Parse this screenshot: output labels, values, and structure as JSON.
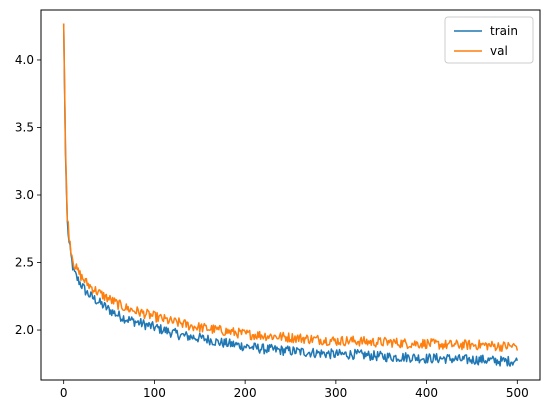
{
  "chart_data": {
    "type": "line",
    "title": "",
    "xlabel": "",
    "ylabel": "",
    "xlim": [
      -25,
      525
    ],
    "ylim": [
      1.63,
      4.37
    ],
    "xticks": [
      0,
      100,
      200,
      300,
      400,
      500
    ],
    "yticks": [
      2.0,
      2.5,
      3.0,
      3.5,
      4.0
    ],
    "xtick_labels": [
      "0",
      "100",
      "200",
      "300",
      "400",
      "500"
    ],
    "ytick_labels": [
      "2.0",
      "2.5",
      "3.0",
      "3.5",
      "4.0"
    ],
    "grid": false,
    "legend": {
      "position": "upper-right"
    },
    "series": [
      {
        "name": "train",
        "color": "#1f77b4",
        "x": [
          0,
          2,
          4,
          6,
          8,
          10,
          12,
          15,
          20,
          25,
          30,
          40,
          50,
          60,
          70,
          80,
          90,
          100,
          110,
          120,
          130,
          140,
          150,
          160,
          170,
          180,
          190,
          200,
          220,
          240,
          260,
          280,
          300,
          320,
          340,
          360,
          380,
          400,
          420,
          440,
          460,
          480,
          500
        ],
        "y": [
          4.27,
          3.3,
          2.8,
          2.64,
          2.55,
          2.47,
          2.42,
          2.38,
          2.33,
          2.28,
          2.25,
          2.2,
          2.15,
          2.11,
          2.08,
          2.06,
          2.04,
          2.02,
          2.0,
          1.98,
          1.96,
          1.95,
          1.94,
          1.93,
          1.91,
          1.9,
          1.89,
          1.88,
          1.86,
          1.85,
          1.84,
          1.83,
          1.82,
          1.82,
          1.81,
          1.8,
          1.8,
          1.79,
          1.79,
          1.78,
          1.78,
          1.77,
          1.77
        ]
      },
      {
        "name": "val",
        "color": "#ff7f0e",
        "x": [
          0,
          2,
          4,
          6,
          8,
          10,
          12,
          15,
          20,
          25,
          30,
          40,
          50,
          60,
          70,
          80,
          90,
          100,
          110,
          120,
          130,
          140,
          150,
          160,
          170,
          180,
          190,
          200,
          220,
          240,
          260,
          280,
          300,
          320,
          340,
          360,
          380,
          400,
          420,
          440,
          460,
          480,
          500
        ],
        "y": [
          4.27,
          3.35,
          2.85,
          2.7,
          2.6,
          2.53,
          2.48,
          2.44,
          2.39,
          2.35,
          2.32,
          2.27,
          2.23,
          2.19,
          2.16,
          2.14,
          2.12,
          2.1,
          2.08,
          2.06,
          2.05,
          2.03,
          2.02,
          2.01,
          2.0,
          1.99,
          1.98,
          1.97,
          1.96,
          1.95,
          1.94,
          1.93,
          1.92,
          1.92,
          1.91,
          1.91,
          1.9,
          1.9,
          1.89,
          1.89,
          1.89,
          1.88,
          1.88
        ]
      }
    ]
  }
}
